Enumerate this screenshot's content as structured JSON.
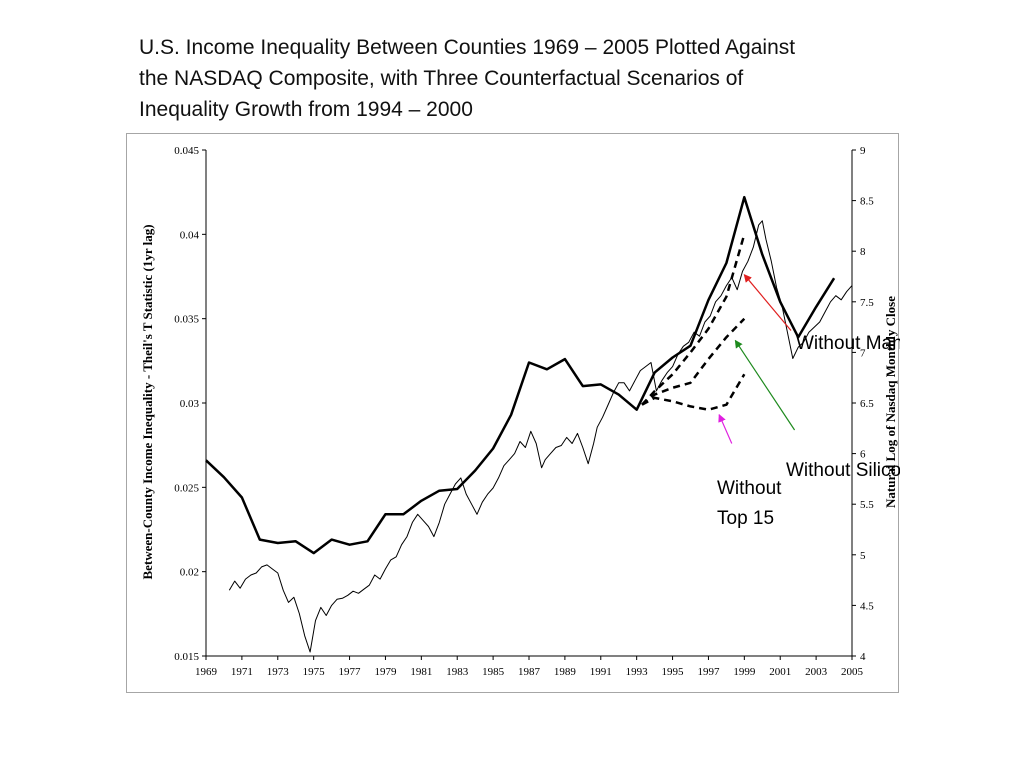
{
  "title_lines": [
    "U.S. Income Inequality Between Counties 1969 – 2005 Plotted Against",
    "the NASDAQ Composite, with Three Counterfactual Scenarios of",
    "Inequality Growth from 1994 – 2000"
  ],
  "colors": {
    "axis": "#000000",
    "frame": "#a6a6a6",
    "manhattan_arrow": "#e02020",
    "silicon_valley_arrow": "#1e8a1e",
    "top15_arrow": "#e020e0"
  },
  "chart_data": {
    "type": "line",
    "title": "U.S. Income Inequality Between Counties 1969 – 2005 Plotted Against the NASDAQ Composite, with Three Counterfactual Scenarios of Inequality Growth from 1994 – 2000",
    "xlabel": "",
    "ylabel": "Between-County Income Inequality - Theil's T Statistic (1yr lag)",
    "y2label": "Natural Log of Nasdaq Monthly Close",
    "xlim": [
      1969,
      2005
    ],
    "ylim": [
      0.015,
      0.045
    ],
    "y2lim": [
      4,
      9
    ],
    "x_ticks": [
      "1969",
      "1971",
      "1973",
      "1975",
      "1977",
      "1979",
      "1981",
      "1983",
      "1985",
      "1987",
      "1989",
      "1991",
      "1993",
      "1995",
      "1997",
      "1999",
      "2001",
      "2003",
      "2005"
    ],
    "y_ticks": [
      "0.015",
      "0.02",
      "0.025",
      "0.03",
      "0.035",
      "0.04",
      "0.045"
    ],
    "y2_ticks": [
      "4",
      "4.5",
      "5",
      "5.5",
      "6",
      "6.5",
      "7",
      "7.5",
      "8",
      "8.5",
      "9"
    ],
    "grid": false,
    "series": [
      {
        "axis": "left",
        "style": "solid-thick",
        "x": [
          1969,
          1970,
          1971,
          1972,
          1973,
          1974,
          1975,
          1976,
          1977,
          1978,
          1979,
          1980,
          1981,
          1982,
          1983,
          1984,
          1985,
          1986,
          1987,
          1988,
          1989,
          1990,
          1991,
          1992,
          1993,
          1994,
          1995,
          1996,
          1997,
          1998,
          1999,
          2000,
          2001,
          2002,
          2003,
          2004
        ],
        "values": [
          0.0266,
          0.0256,
          0.0244,
          0.0219,
          0.0217,
          0.0218,
          0.0211,
          0.0219,
          0.0216,
          0.0218,
          0.0234,
          0.0234,
          0.0242,
          0.0248,
          0.0249,
          0.026,
          0.0273,
          0.0293,
          0.0324,
          0.032,
          0.0326,
          0.031,
          0.0311,
          0.0305,
          0.0296,
          0.0318,
          0.0327,
          0.0334,
          0.0361,
          0.0383,
          0.0422,
          0.0388,
          0.036,
          0.0339,
          0.0357,
          0.0374
        ]
      },
      {
        "axis": "right",
        "style": "thin",
        "x": [
          1970.3,
          1970.6,
          1970.9,
          1971.2,
          1971.5,
          1971.8,
          1972.1,
          1972.4,
          1972.7,
          1973.0,
          1973.3,
          1973.6,
          1973.9,
          1974.2,
          1974.5,
          1974.8,
          1975.1,
          1975.4,
          1975.7,
          1976.0,
          1976.3,
          1976.6,
          1976.9,
          1977.2,
          1977.5,
          1977.8,
          1978.1,
          1978.4,
          1978.7,
          1979.0,
          1979.3,
          1979.6,
          1979.9,
          1980.2,
          1980.5,
          1980.8,
          1981.1,
          1981.4,
          1981.7,
          1982.0,
          1982.3,
          1982.6,
          1982.9,
          1983.2,
          1983.5,
          1983.8,
          1984.1,
          1984.4,
          1984.7,
          1985.0,
          1985.3,
          1985.6,
          1985.9,
          1986.2,
          1986.5,
          1986.8,
          1987.1,
          1987.4,
          1987.7,
          1987.9,
          1988.2,
          1988.5,
          1988.8,
          1989.1,
          1989.4,
          1989.7,
          1990.0,
          1990.3,
          1990.6,
          1990.8,
          1991.1,
          1991.4,
          1991.7,
          1992.0,
          1992.3,
          1992.6,
          1992.9,
          1993.2,
          1993.5,
          1993.8,
          1994.1,
          1994.4,
          1994.7,
          1995.0,
          1995.3,
          1995.6,
          1995.9,
          1996.2,
          1996.5,
          1996.8,
          1997.1,
          1997.4,
          1997.7,
          1998.0,
          1998.3,
          1998.6,
          1998.9,
          1999.2,
          1999.5,
          1999.8,
          2000.0,
          2000.2,
          2000.5,
          2000.8,
          2001.1,
          2001.4,
          2001.7,
          2002.0,
          2002.3,
          2002.6,
          2002.9,
          2003.2,
          2003.5,
          2003.8,
          2004.1,
          2004.4,
          2004.7,
          2005.0
        ],
        "values": [
          4.65,
          4.74,
          4.67,
          4.76,
          4.8,
          4.82,
          4.88,
          4.9,
          4.86,
          4.82,
          4.65,
          4.53,
          4.58,
          4.42,
          4.2,
          4.04,
          4.35,
          4.48,
          4.4,
          4.5,
          4.56,
          4.57,
          4.6,
          4.64,
          4.62,
          4.66,
          4.7,
          4.8,
          4.76,
          4.86,
          4.95,
          4.98,
          5.1,
          5.18,
          5.32,
          5.4,
          5.34,
          5.28,
          5.18,
          5.32,
          5.5,
          5.6,
          5.7,
          5.76,
          5.6,
          5.5,
          5.4,
          5.52,
          5.6,
          5.66,
          5.76,
          5.88,
          5.94,
          6.0,
          6.12,
          6.06,
          6.22,
          6.1,
          5.86,
          5.94,
          6.0,
          6.06,
          6.08,
          6.16,
          6.1,
          6.2,
          6.06,
          5.9,
          6.1,
          6.26,
          6.36,
          6.48,
          6.6,
          6.7,
          6.7,
          6.62,
          6.72,
          6.82,
          6.86,
          6.9,
          6.62,
          6.72,
          6.8,
          6.86,
          6.98,
          7.06,
          7.1,
          7.2,
          7.16,
          7.3,
          7.36,
          7.5,
          7.56,
          7.66,
          7.74,
          7.62,
          7.8,
          7.9,
          8.04,
          8.26,
          8.3,
          8.12,
          7.9,
          7.64,
          7.46,
          7.2,
          6.94,
          7.05,
          7.1,
          7.2,
          7.25,
          7.3,
          7.4,
          7.5,
          7.56,
          7.52,
          7.6,
          7.66
        ]
      },
      {
        "name": "Without Manhattan",
        "axis": "left",
        "style": "dashed",
        "x": [
          1993.3,
          1994,
          1995,
          1996,
          1997,
          1998,
          1999
        ],
        "values": [
          0.0299,
          0.0307,
          0.0317,
          0.033,
          0.0344,
          0.0363,
          0.04
        ]
      },
      {
        "name": "Without Silicon Valley",
        "axis": "left",
        "style": "dashed",
        "x": [
          1993.3,
          1994,
          1995,
          1996,
          1997,
          1998,
          1999
        ],
        "values": [
          0.0299,
          0.0305,
          0.0309,
          0.0312,
          0.0326,
          0.0339,
          0.035
        ]
      },
      {
        "name": "Without Top 15",
        "axis": "left",
        "style": "dashed",
        "x": [
          1993.3,
          1994,
          1995,
          1996,
          1997,
          1998,
          1999
        ],
        "values": [
          0.0299,
          0.0303,
          0.0301,
          0.0298,
          0.0296,
          0.0299,
          0.0317
        ]
      }
    ],
    "annotations": [
      {
        "lines": [
          "Without Manhattan"
        ],
        "target_x": 1999.0,
        "target_y": 0.0376,
        "tail_x": 2001.6,
        "tail_y": 0.0343
      },
      {
        "lines": [
          "Without Silicon Valley"
        ],
        "target_x": 1998.5,
        "target_y": 0.0337,
        "tail_x": 2001.8,
        "tail_y": 0.0284
      },
      {
        "lines": [
          "Without",
          "Top 15"
        ],
        "target_x": 1997.6,
        "target_y": 0.0293,
        "tail_x": 1998.3,
        "tail_y": 0.0276
      }
    ]
  }
}
